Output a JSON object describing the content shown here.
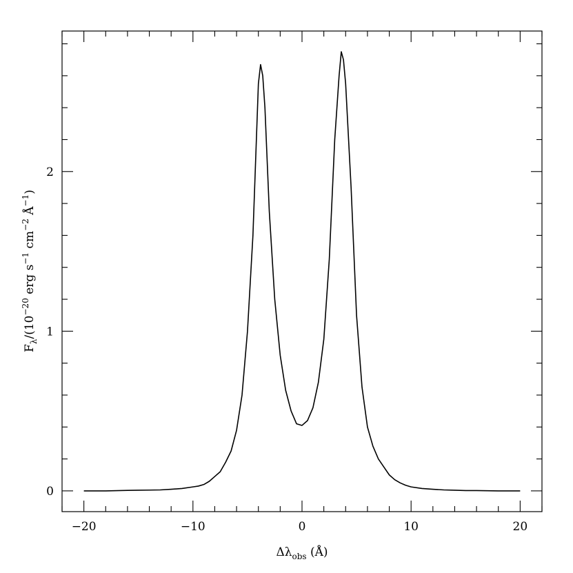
{
  "chart_data": {
    "type": "line",
    "title": "",
    "xlabel": {
      "main": "Δλ",
      "sub": "obs",
      "unit": " (Å)"
    },
    "ylabel": {
      "p1": "F",
      "p1_sub": "λ",
      "p2": "/(10",
      "p2_sup": "−20",
      "p3": " erg s",
      "p3_sup": "−1",
      "p4": " cm",
      "p4_sup": "−2",
      "p5": " Å",
      "p5_sup": "−1",
      "p6": ")"
    },
    "xlim": [
      -22,
      22
    ],
    "ylim": [
      -0.13,
      2.88
    ],
    "x_ticks": [
      {
        "value": -20,
        "label": "−20"
      },
      {
        "value": -10,
        "label": "−10"
      },
      {
        "value": 0,
        "label": "0"
      },
      {
        "value": 10,
        "label": "10"
      },
      {
        "value": 20,
        "label": "20"
      }
    ],
    "x_minor_step": 2,
    "y_ticks": [
      {
        "value": 0,
        "label": "0"
      },
      {
        "value": 1,
        "label": "1"
      },
      {
        "value": 2,
        "label": "2"
      }
    ],
    "y_minor_step": 0.2,
    "grid": false,
    "series": [
      {
        "x": [
          -20,
          -18,
          -16,
          -15,
          -14,
          -13,
          -12,
          -11,
          -10,
          -9.5,
          -9,
          -8.5,
          -8,
          -7.5,
          -7,
          -6.5,
          -6,
          -5.5,
          -5,
          -4.5,
          -4,
          -3.8,
          -3.6,
          -3.4,
          -3,
          -2.5,
          -2,
          -1.5,
          -1,
          -0.5,
          0,
          0.5,
          1,
          1.5,
          2,
          2.5,
          3,
          3.4,
          3.6,
          3.8,
          4,
          4.5,
          5,
          5.5,
          6,
          6.5,
          7,
          7.5,
          8,
          8.5,
          9,
          9.5,
          10,
          11,
          12,
          13,
          14,
          15,
          16,
          18,
          20
        ],
        "y": [
          0,
          0,
          0.003,
          0.004,
          0.005,
          0.006,
          0.01,
          0.015,
          0.025,
          0.03,
          0.04,
          0.06,
          0.09,
          0.12,
          0.18,
          0.25,
          0.38,
          0.6,
          1.0,
          1.6,
          2.55,
          2.67,
          2.6,
          2.4,
          1.75,
          1.2,
          0.85,
          0.63,
          0.5,
          0.42,
          0.41,
          0.44,
          0.52,
          0.68,
          0.95,
          1.45,
          2.2,
          2.6,
          2.75,
          2.7,
          2.55,
          1.9,
          1.1,
          0.65,
          0.4,
          0.28,
          0.2,
          0.15,
          0.1,
          0.07,
          0.05,
          0.035,
          0.025,
          0.015,
          0.01,
          0.006,
          0.004,
          0.002,
          0.002,
          0,
          0
        ]
      }
    ]
  }
}
